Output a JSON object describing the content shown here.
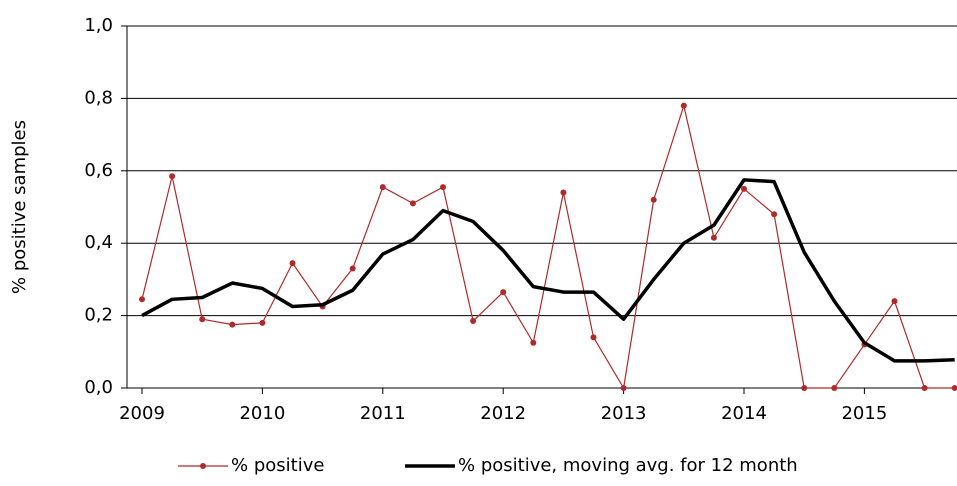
{
  "chart_data": {
    "type": "line",
    "y_label": "% positive samples",
    "categories": [
      "2009",
      null,
      null,
      null,
      "2010",
      null,
      null,
      null,
      "2011",
      null,
      null,
      null,
      "2012",
      null,
      null,
      null,
      "2013",
      null,
      null,
      null,
      "2014",
      null,
      null,
      null,
      "2015",
      null,
      null,
      null
    ],
    "series": [
      {
        "name": "% positive",
        "color": "#b02a2a",
        "marker": true,
        "values": [
          0.245,
          0.585,
          0.19,
          0.175,
          0.18,
          0.345,
          0.225,
          0.33,
          0.555,
          0.51,
          0.555,
          0.185,
          0.265,
          0.125,
          0.54,
          0.14,
          0.0,
          0.52,
          0.78,
          0.415,
          0.55,
          0.48,
          0.0,
          0.0,
          0.12,
          0.24,
          0.0,
          0.0
        ]
      },
      {
        "name": "% positive, moving avg. for 12 month",
        "color": "#000000",
        "marker": false,
        "values": [
          0.2,
          0.245,
          0.25,
          0.29,
          0.275,
          0.225,
          0.23,
          0.27,
          0.37,
          0.41,
          0.49,
          0.46,
          0.38,
          0.28,
          0.265,
          0.265,
          0.19,
          0.3,
          0.4,
          0.45,
          0.575,
          0.57,
          0.375,
          0.24,
          0.125,
          0.075,
          0.075,
          0.078
        ]
      }
    ],
    "ylim": [
      0,
      1
    ],
    "yticks": [
      {
        "value": 0,
        "label": "0,0"
      },
      {
        "value": 0.2,
        "label": "0,2"
      },
      {
        "value": 0.4,
        "label": "0,4"
      },
      {
        "value": 0.6,
        "label": "0,6"
      },
      {
        "value": 0.8,
        "label": "0,8"
      },
      {
        "value": 1,
        "label": "1,0"
      }
    ],
    "grid": true,
    "legend": "bottom"
  }
}
